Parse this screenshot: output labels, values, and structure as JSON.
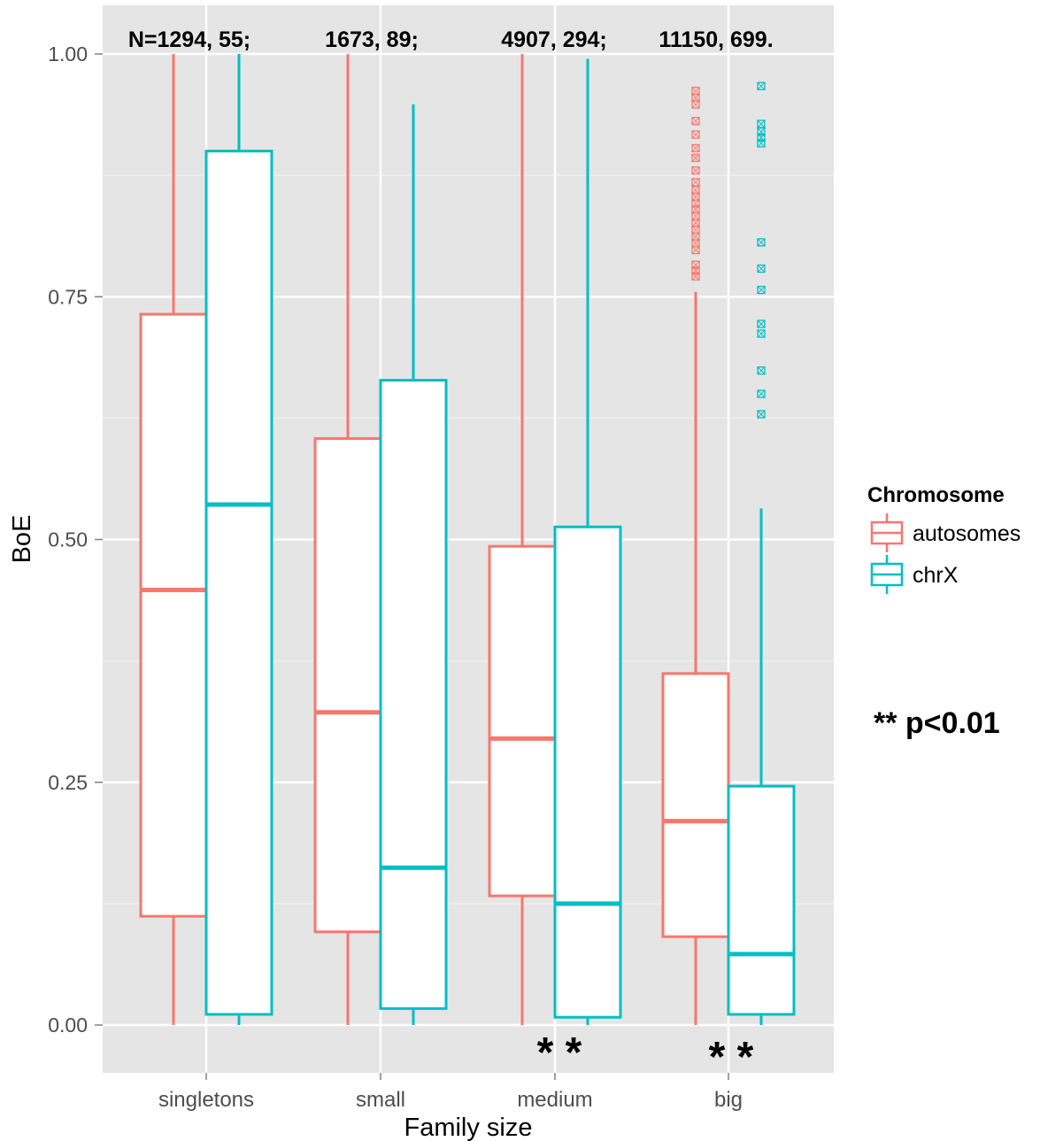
{
  "chart_data": {
    "type": "box",
    "xlabel": "Family size",
    "ylabel": "BoE",
    "categories": [
      "singletons",
      "small",
      "medium",
      "big"
    ],
    "ylim": [
      -0.05,
      1.05
    ],
    "yticks": [
      "0.00",
      "0.25",
      "0.50",
      "0.75",
      "1.00"
    ],
    "ytick_values": [
      0.0,
      0.25,
      0.5,
      0.75,
      1.0
    ],
    "grid": true,
    "legend_position": "right",
    "legend_title": "Chromosome",
    "series": [
      {
        "name": "autosomes",
        "color": "#f8766d",
        "boxes": [
          {
            "min": 0.0,
            "q1": 0.112,
            "median": 0.448,
            "q3": 0.732,
            "max": 1.0
          },
          {
            "min": 0.0,
            "q1": 0.096,
            "median": 0.322,
            "q3": 0.604,
            "max": 1.0
          },
          {
            "min": 0.0,
            "q1": 0.133,
            "median": 0.295,
            "q3": 0.493,
            "max": 1.0
          },
          {
            "min": 0.0,
            "q1": 0.091,
            "median": 0.21,
            "q3": 0.362,
            "max": 0.755
          }
        ],
        "outliers": [
          [],
          [],
          [],
          [
            0.962,
            0.955,
            0.948,
            0.931,
            0.917,
            0.903,
            0.893,
            0.88,
            0.868,
            0.86,
            0.853,
            0.846,
            0.84,
            0.833,
            0.826,
            0.819,
            0.812,
            0.805,
            0.798,
            0.783,
            0.777,
            0.771
          ]
        ]
      },
      {
        "name": "chrX",
        "color": "#00bfc4",
        "boxes": [
          {
            "min": 0.0,
            "q1": 0.011,
            "median": 0.536,
            "q3": 0.9,
            "max": 1.0
          },
          {
            "min": 0.0,
            "q1": 0.017,
            "median": 0.162,
            "q3": 0.664,
            "max": 0.948
          },
          {
            "min": 0.0,
            "q1": 0.008,
            "median": 0.125,
            "q3": 0.513,
            "max": 0.995
          },
          {
            "min": 0.0,
            "q1": 0.011,
            "median": 0.073,
            "q3": 0.246,
            "max": 0.532
          }
        ],
        "outliers": [
          [],
          [],
          [],
          [
            0.967,
            0.928,
            0.92,
            0.914,
            0.908,
            0.806,
            0.779,
            0.757,
            0.722,
            0.712,
            0.674,
            0.65,
            0.629
          ]
        ]
      }
    ],
    "annotations": {
      "counts": [
        "N=1294, 55;",
        "1673, 89;",
        "4907, 294;",
        "11150, 699."
      ],
      "significance_marks": [
        {
          "category": "medium",
          "text": "* *"
        },
        {
          "category": "big",
          "text": "* *"
        }
      ],
      "pvalue_note": "** p<0.01"
    }
  }
}
